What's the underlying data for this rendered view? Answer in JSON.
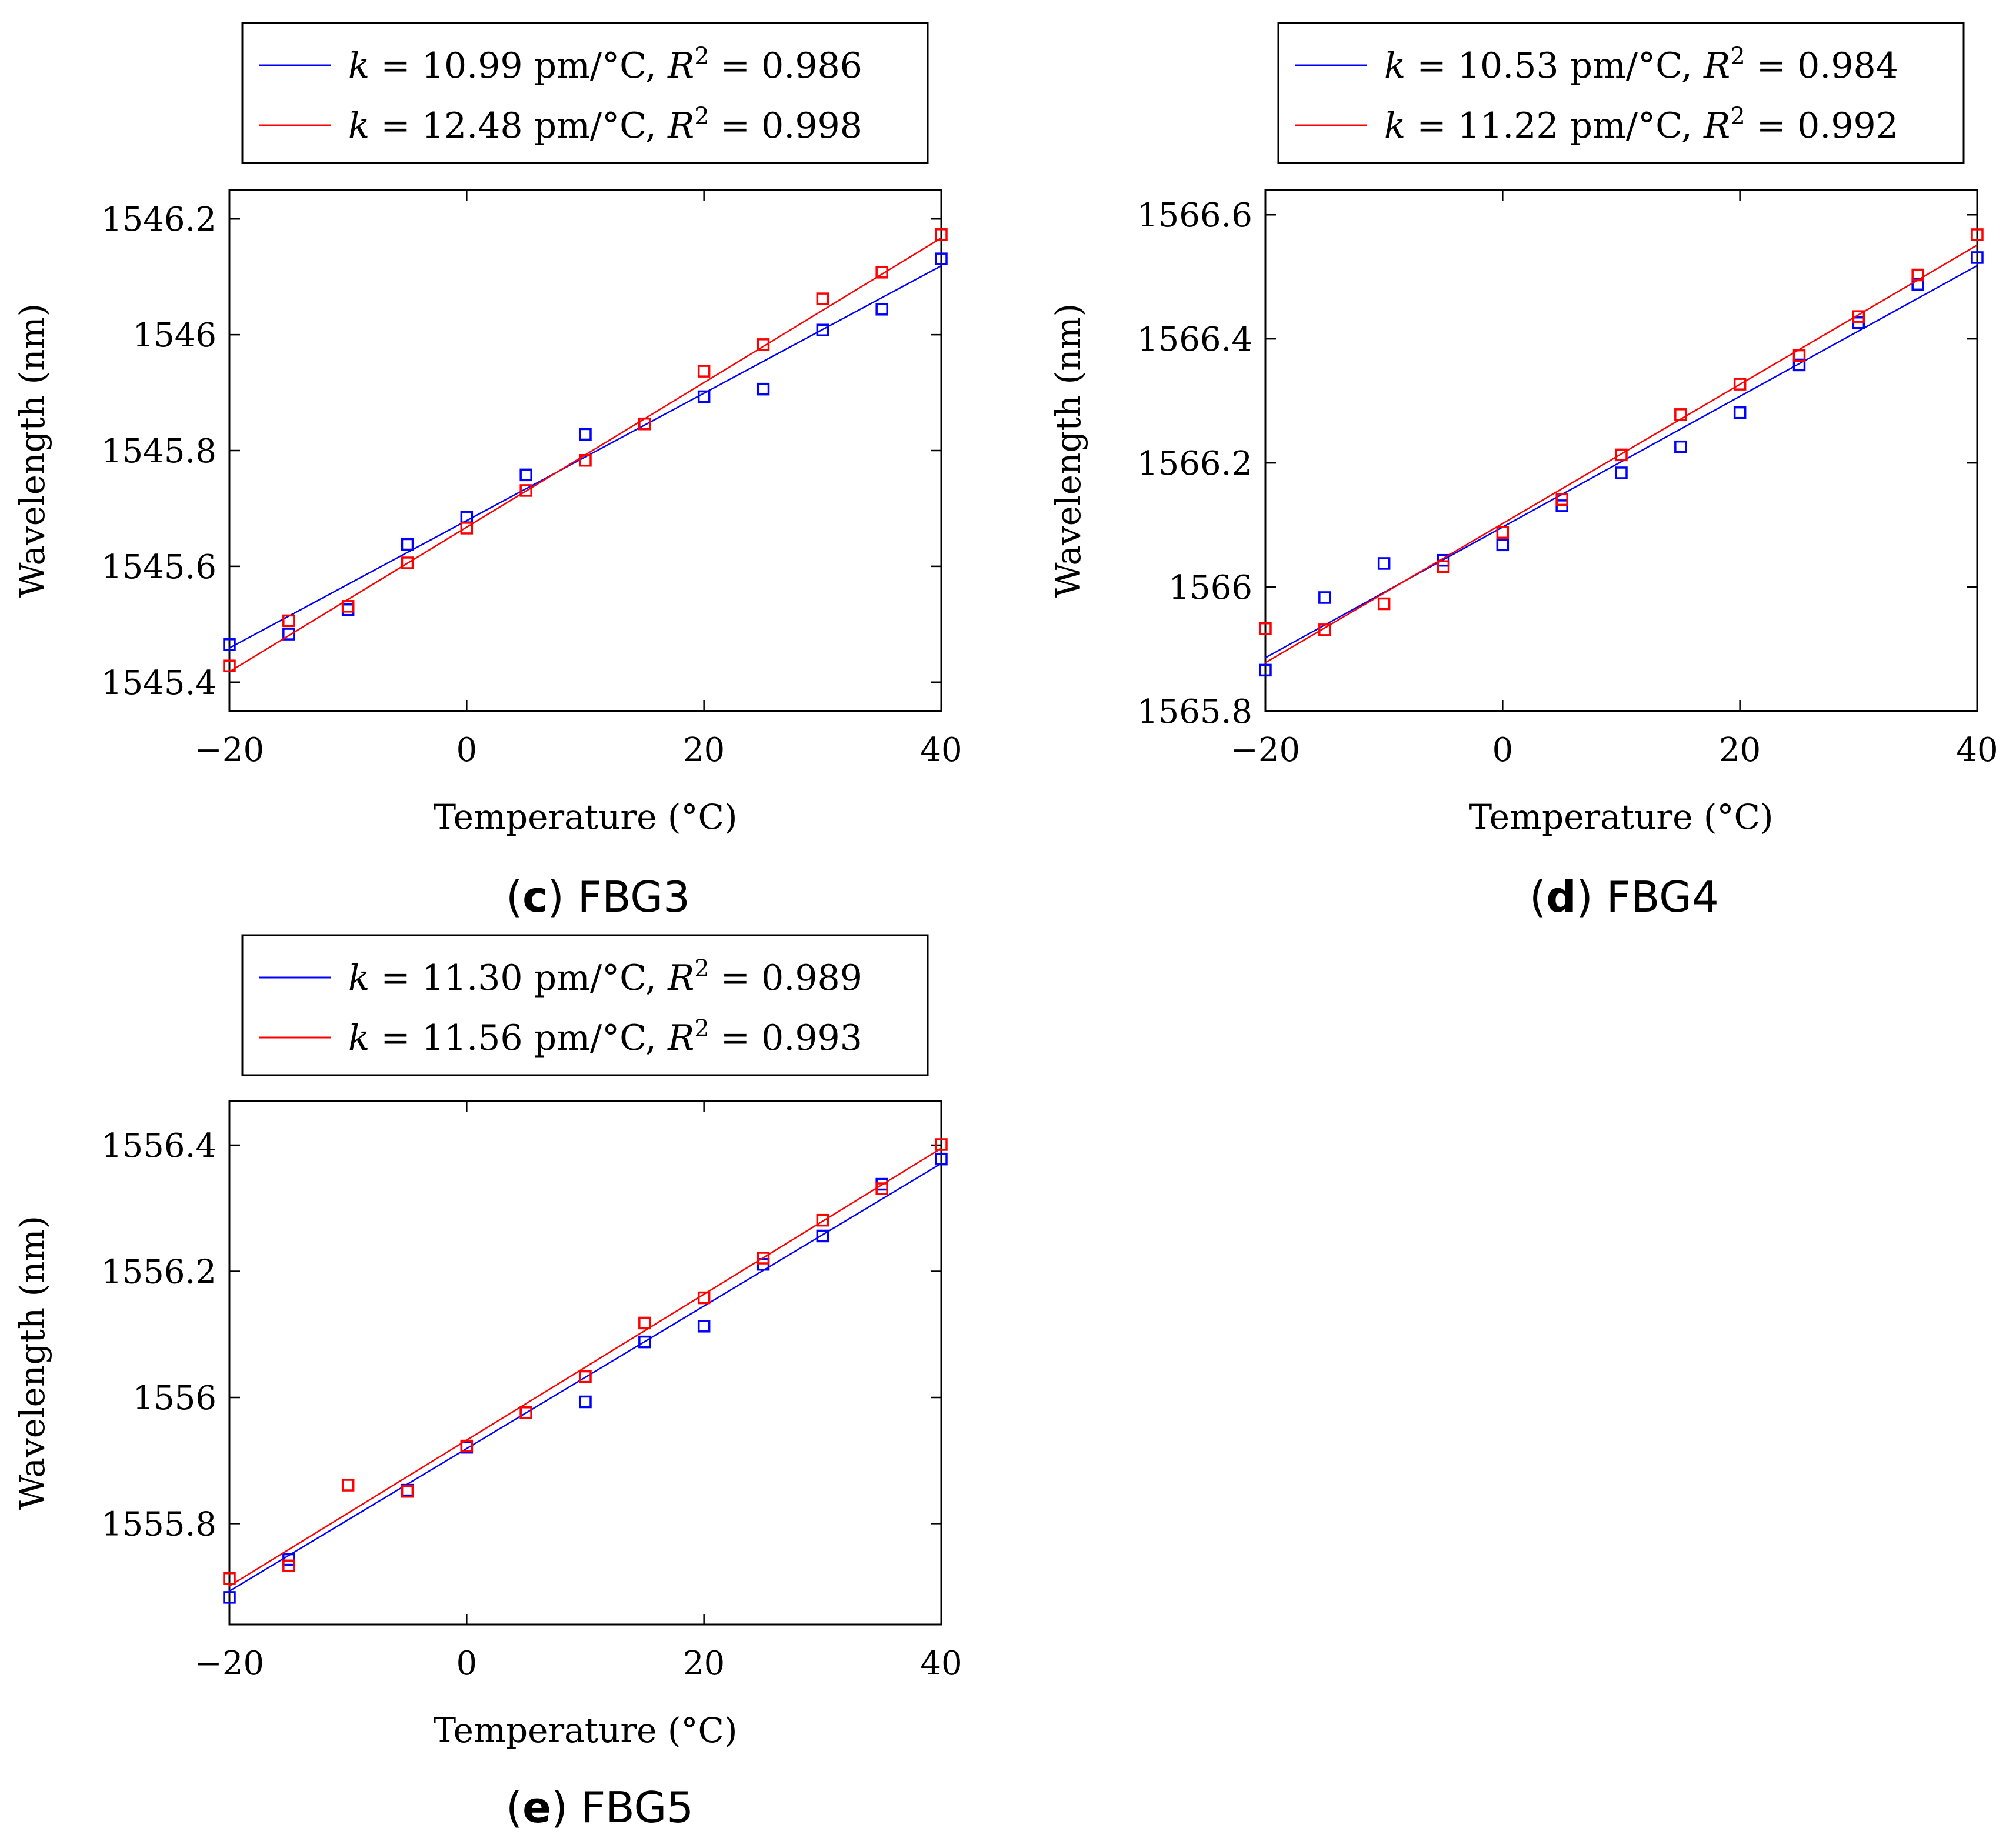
{
  "chart_data": [
    {
      "type": "scatter",
      "panel_label": "c",
      "caption": "FBG3",
      "xlabel": "Temperature (°C)",
      "ylabel": "Wavelength (nm)",
      "xlim": [
        -20,
        40
      ],
      "ylim": [
        1545.35,
        1546.25
      ],
      "xticks": [
        -20,
        0,
        20,
        40
      ],
      "xtick_labels": [
        "−20",
        "0",
        "20",
        "40"
      ],
      "yticks": [
        1545.4,
        1545.6,
        1545.8,
        1546.0,
        1546.2
      ],
      "ytick_labels": [
        "1545.4",
        "1545.6",
        "1545.8",
        "1546",
        "1546.2"
      ],
      "x": [
        -20,
        -15,
        -10,
        -5,
        0,
        5,
        10,
        15,
        20,
        25,
        30,
        35,
        40
      ],
      "series": [
        {
          "name": "blue",
          "color": "#0000ff",
          "legend": {
            "k_text": "k",
            "eq1": " = 10.99 pm/°C, ",
            "r_text": "R",
            "sup": "2",
            "eq2": " = 0.986"
          },
          "values": [
            1545.465,
            1545.483,
            1545.525,
            1545.638,
            1545.685,
            1545.758,
            1545.828,
            1545.846,
            1545.893,
            1545.906,
            1546.008,
            1546.044,
            1546.131
          ],
          "fit": [
            1545.459,
            1546.119
          ]
        },
        {
          "name": "red",
          "color": "#ff0000",
          "legend": {
            "k_text": "k",
            "eq1": " = 12.48 pm/°C, ",
            "r_text": "R",
            "sup": "2",
            "eq2": " = 0.998"
          },
          "values": [
            1545.428,
            1545.506,
            1545.531,
            1545.606,
            1545.666,
            1545.731,
            1545.783,
            1545.846,
            1545.937,
            1545.983,
            1546.062,
            1546.108,
            1546.173
          ],
          "fit": [
            1545.418,
            1546.167
          ]
        }
      ]
    },
    {
      "type": "scatter",
      "panel_label": "d",
      "caption": "FBG4",
      "xlabel": "Temperature (°C)",
      "ylabel": "Wavelength (nm)",
      "xlim": [
        -20,
        40
      ],
      "ylim": [
        1565.8,
        1566.64
      ],
      "xticks": [
        -20,
        0,
        20,
        40
      ],
      "xtick_labels": [
        "−20",
        "0",
        "20",
        "40"
      ],
      "yticks": [
        1565.8,
        1566.0,
        1566.2,
        1566.4,
        1566.6
      ],
      "ytick_labels": [
        "1565.8",
        "1566",
        "1566.2",
        "1566.4",
        "1566.6"
      ],
      "x": [
        -20,
        -15,
        -10,
        -5,
        0,
        5,
        10,
        15,
        20,
        25,
        30,
        35,
        40
      ],
      "series": [
        {
          "name": "blue",
          "color": "#0000ff",
          "legend": {
            "k_text": "k",
            "eq1": " = 10.53 pm/°C, ",
            "r_text": "R",
            "sup": "2",
            "eq2": " = 0.984"
          },
          "values": [
            1565.866,
            1565.983,
            1566.038,
            1566.043,
            1566.068,
            1566.131,
            1566.184,
            1566.226,
            1566.281,
            1566.358,
            1566.426,
            1566.488,
            1566.531
          ],
          "fit": [
            1565.886,
            1566.518
          ]
        },
        {
          "name": "red",
          "color": "#ff0000",
          "legend": {
            "k_text": "k",
            "eq1": " = 11.22 pm/°C, ",
            "r_text": "R",
            "sup": "2",
            "eq2": " = 0.992"
          },
          "values": [
            1565.933,
            1565.931,
            1565.973,
            1566.033,
            1566.088,
            1566.141,
            1566.213,
            1566.278,
            1566.327,
            1566.373,
            1566.436,
            1566.503,
            1566.568
          ],
          "fit": [
            1565.878,
            1566.551
          ]
        }
      ]
    },
    {
      "type": "scatter",
      "panel_label": "e",
      "caption": "FBG5",
      "xlabel": "Temperature (°C)",
      "ylabel": "Wavelength (nm)",
      "xlim": [
        -20,
        40
      ],
      "ylim": [
        1555.64,
        1556.47
      ],
      "xticks": [
        -20,
        0,
        20,
        40
      ],
      "xtick_labels": [
        "−20",
        "0",
        "20",
        "40"
      ],
      "yticks": [
        1555.8,
        1556.0,
        1556.2,
        1556.4
      ],
      "ytick_labels": [
        "1555.8",
        "1556",
        "1556.2",
        "1556.4"
      ],
      "x": [
        -20,
        -15,
        -10,
        -5,
        0,
        5,
        10,
        15,
        20,
        25,
        30,
        35,
        40
      ],
      "series": [
        {
          "name": "blue",
          "color": "#0000ff",
          "legend": {
            "k_text": "k",
            "eq1": " = 11.30 pm/°C, ",
            "r_text": "R",
            "sup": "2",
            "eq2": " = 0.989"
          },
          "values": [
            1555.683,
            1555.743,
            null,
            1555.853,
            1555.921,
            1555.976,
            1555.993,
            1556.088,
            1556.113,
            1556.211,
            1556.256,
            1556.338,
            1556.378
          ],
          "fit": [
            1555.693,
            1556.371
          ]
        },
        {
          "name": "red",
          "color": "#ff0000",
          "legend": {
            "k_text": "k",
            "eq1": " = 11.56 pm/°C, ",
            "r_text": "R",
            "sup": "2",
            "eq2": " = 0.993"
          },
          "values": [
            1555.713,
            1555.733,
            1555.861,
            1555.851,
            1555.923,
            1555.976,
            1556.033,
            1556.118,
            1556.158,
            1556.221,
            1556.281,
            1556.331,
            1556.401
          ],
          "fit": [
            1555.701,
            1556.395
          ]
        }
      ]
    }
  ]
}
